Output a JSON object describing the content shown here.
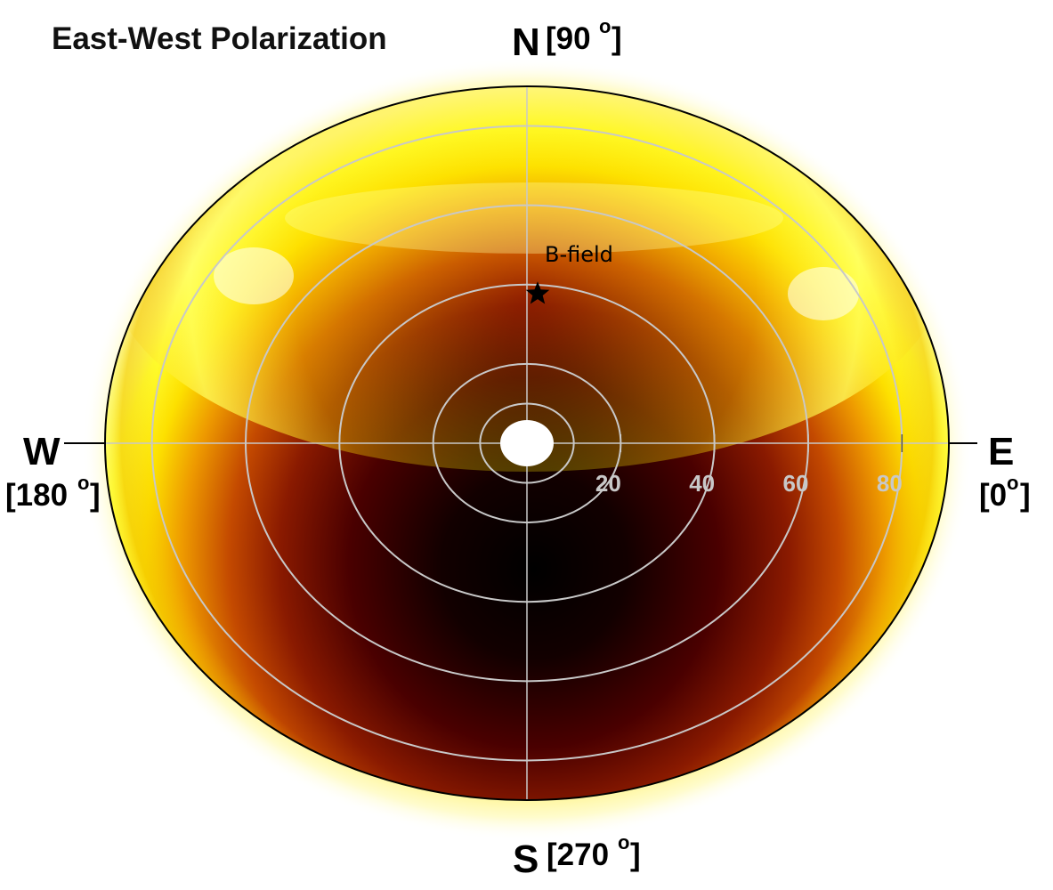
{
  "chart_data": {
    "type": "heatmap",
    "projection": "polar",
    "title": "East-West Polarization",
    "directions": {
      "north": {
        "letter": "N",
        "angle": "[90",
        "degree_mark": "o",
        "close": "]"
      },
      "south": {
        "letter": "S",
        "angle": "[270",
        "degree_mark": "o",
        "close": "]"
      },
      "west": {
        "letter": "W",
        "angle": "[180",
        "degree_mark": "o",
        "close": "]"
      },
      "east": {
        "letter": "E",
        "angle": "[0",
        "degree_mark": "o",
        "close": "]"
      }
    },
    "radial_ticks": [
      "20",
      "40",
      "60",
      "80"
    ],
    "radial_tick_values": [
      20,
      40,
      60,
      80
    ],
    "rings": [
      10,
      20,
      40,
      60,
      80
    ],
    "radial_range": [
      0,
      90
    ],
    "grid": true,
    "annotation": {
      "label": "B-field",
      "azimuth_deg": 90,
      "zenith_deg": 37
    },
    "colormap": [
      "#000000",
      "#5a0000",
      "#c04000",
      "#f0a000",
      "#fff000",
      "#ffffd0"
    ],
    "colors": {
      "grid": "#c8c8c8",
      "outer_circle": "#000000"
    }
  }
}
